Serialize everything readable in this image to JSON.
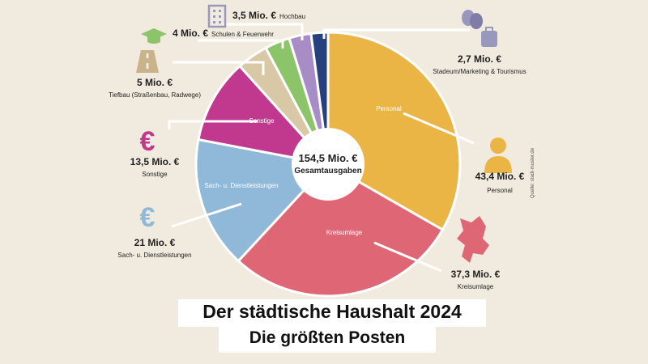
{
  "chart_data": {
    "type": "pie",
    "title": "Der städtische Haushalt 2024",
    "subtitle": "Die größten Posten",
    "center_value": "154,5 Mio. €",
    "center_label": "Gesamtausgaben",
    "unit": "Mio. €",
    "total": 154.5,
    "source": "Quelle: stadt-muster.de",
    "slices": [
      {
        "name": "Personal",
        "value": 43.4,
        "value_label": "43,4 Mio. €",
        "caption": "Personal",
        "inside_label": "Personal",
        "color": "#ebb545",
        "icon": "person-icon"
      },
      {
        "name": "Kreisumlage",
        "value": 37.3,
        "value_label": "37,3 Mio. €",
        "caption": "Kreisumlage",
        "inside_label": "Kreisumlage",
        "color": "#df6775",
        "icon": "district-map-icon"
      },
      {
        "name": "Sach- u. Dienstleistungen",
        "value": 21,
        "value_label": "21 Mio. €",
        "caption": "Sach- u. Dienstleistungen",
        "inside_label": "Sach- u. Dienstleistungen",
        "color": "#8fb8d9",
        "icon": "euro-icon"
      },
      {
        "name": "Sonstige",
        "value": 13.5,
        "value_label": "13,5 Mio. €",
        "caption": "Sonstige",
        "inside_label": "Sonstige",
        "color": "#c0398f",
        "icon": "euro-icon"
      },
      {
        "name": "Tiefbau (Straßenbau, Radwege)",
        "value": 5,
        "value_label": "5 Mio. €",
        "caption": "Tiefbau (Straßenbau, Radwege)",
        "inside_label": "",
        "color": "#d8c8a6",
        "icon": "road-icon"
      },
      {
        "name": "Schulen & Feuerwehr",
        "value": 4,
        "value_label": "4 Mio. €",
        "caption": "Schulen & Feuerwehr",
        "inside_label": "",
        "color": "#8cc46a",
        "icon": "graduation-cap-icon"
      },
      {
        "name": "Hochbau",
        "value": 3.5,
        "value_label": "3,5 Mio. €",
        "caption": "Hochbau",
        "inside_label": "",
        "color": "#a78cc6",
        "icon": "building-icon"
      },
      {
        "name": "Stadeum/Marketing & Tourismus",
        "value": 2.7,
        "value_label": "2,7 Mio. €",
        "caption": "Stadeum/Marketing & Tourismus",
        "inside_label": "",
        "color": "#27407e",
        "icon": "theater-masks-icon"
      }
    ]
  },
  "colors": {
    "background": "#f1ebdf",
    "text": "#222222",
    "label_gray": "#9a97bd"
  }
}
